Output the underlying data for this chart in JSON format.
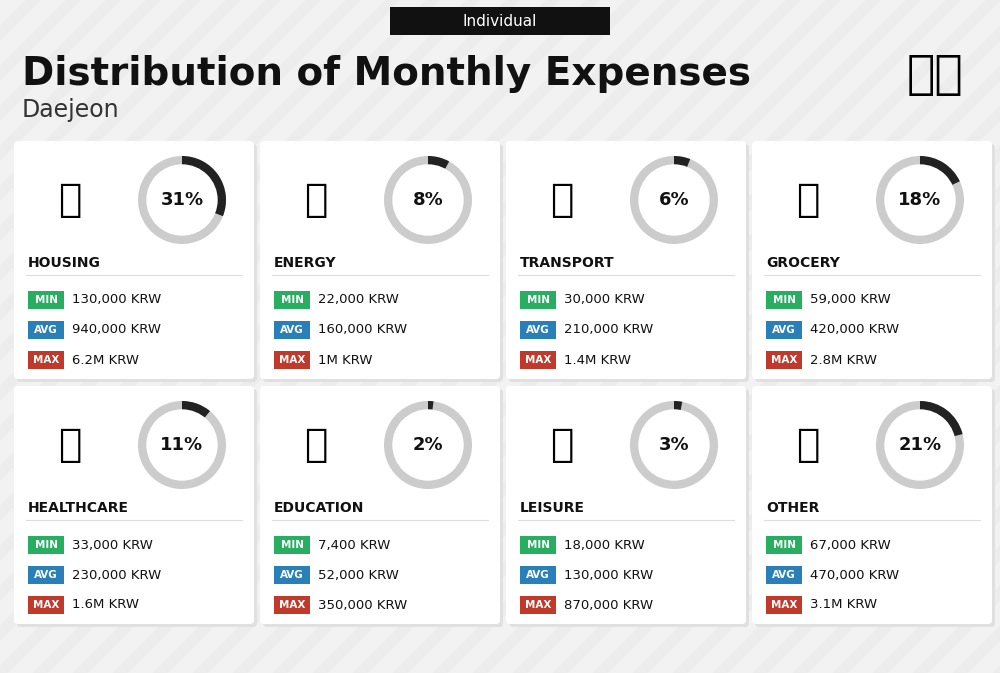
{
  "title": "Distribution of Monthly Expenses",
  "subtitle": "Individual",
  "city": "Daejeon",
  "background_color": "#f2f2f2",
  "card_color": "#ffffff",
  "categories": [
    {
      "name": "HOUSING",
      "percent": 31,
      "min": "130,000 KRW",
      "avg": "940,000 KRW",
      "max": "6.2M KRW",
      "row": 0,
      "col": 0
    },
    {
      "name": "ENERGY",
      "percent": 8,
      "min": "22,000 KRW",
      "avg": "160,000 KRW",
      "max": "1M KRW",
      "row": 0,
      "col": 1
    },
    {
      "name": "TRANSPORT",
      "percent": 6,
      "min": "30,000 KRW",
      "avg": "210,000 KRW",
      "max": "1.4M KRW",
      "row": 0,
      "col": 2
    },
    {
      "name": "GROCERY",
      "percent": 18,
      "min": "59,000 KRW",
      "avg": "420,000 KRW",
      "max": "2.8M KRW",
      "row": 0,
      "col": 3
    },
    {
      "name": "HEALTHCARE",
      "percent": 11,
      "min": "33,000 KRW",
      "avg": "230,000 KRW",
      "max": "1.6M KRW",
      "row": 1,
      "col": 0
    },
    {
      "name": "EDUCATION",
      "percent": 2,
      "min": "7,400 KRW",
      "avg": "52,000 KRW",
      "max": "350,000 KRW",
      "row": 1,
      "col": 1
    },
    {
      "name": "LEISURE",
      "percent": 3,
      "min": "18,000 KRW",
      "avg": "130,000 KRW",
      "max": "870,000 KRW",
      "row": 1,
      "col": 2
    },
    {
      "name": "OTHER",
      "percent": 21,
      "min": "67,000 KRW",
      "avg": "470,000 KRW",
      "max": "3.1M KRW",
      "row": 1,
      "col": 3
    }
  ],
  "icons": [
    "🏢",
    "⚡",
    "🚌",
    "🛒",
    "🏥",
    "🎓",
    "🛒",
    "💰"
  ],
  "min_color": "#27ae60",
  "avg_color": "#2980b9",
  "max_color": "#c0392b",
  "arc_dark": "#222222",
  "arc_light": "#cccccc",
  "title_color": "#111111",
  "city_color": "#333333",
  "subtitle_bg": "#111111",
  "subtitle_text": "#ffffff",
  "name_color": "#111111",
  "value_color": "#111111",
  "stripe_color": "#e8e8e8",
  "card_shadow": "#e0e0e0"
}
